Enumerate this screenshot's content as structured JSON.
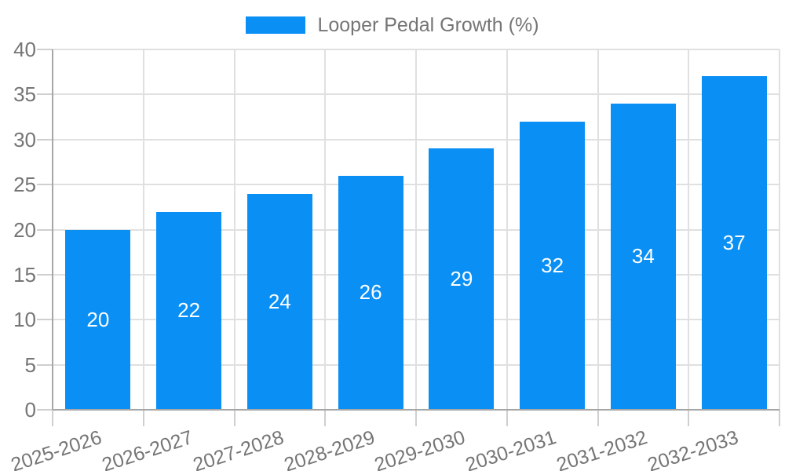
{
  "chart_data": {
    "type": "bar",
    "title": "Looper Pedal Growth (%)",
    "legend": {
      "label": "Looper Pedal Growth (%)",
      "position": "top-center"
    },
    "categories": [
      "2025-2026",
      "2026-2027",
      "2027-2028",
      "2028-2029",
      "2029-2030",
      "2030-2031",
      "2031-2032",
      "2032-2033"
    ],
    "values": [
      20,
      22,
      24,
      26,
      29,
      32,
      34,
      37
    ],
    "xlabel": "",
    "ylabel": "",
    "ylim": [
      0,
      40
    ],
    "ytick_step": 5,
    "yticks": [
      0,
      5,
      10,
      15,
      20,
      25,
      30,
      35,
      40
    ],
    "grid": "both",
    "value_labels_inside_bars": true,
    "colors": {
      "bar": "#0a8ff5",
      "value_label": "#ffffff",
      "axis_text": "#757575",
      "legend_text": "#757575",
      "gridline": "#e0e0e0",
      "tick": "#cfcfcf",
      "axis_line": "#a6a6a6"
    }
  }
}
